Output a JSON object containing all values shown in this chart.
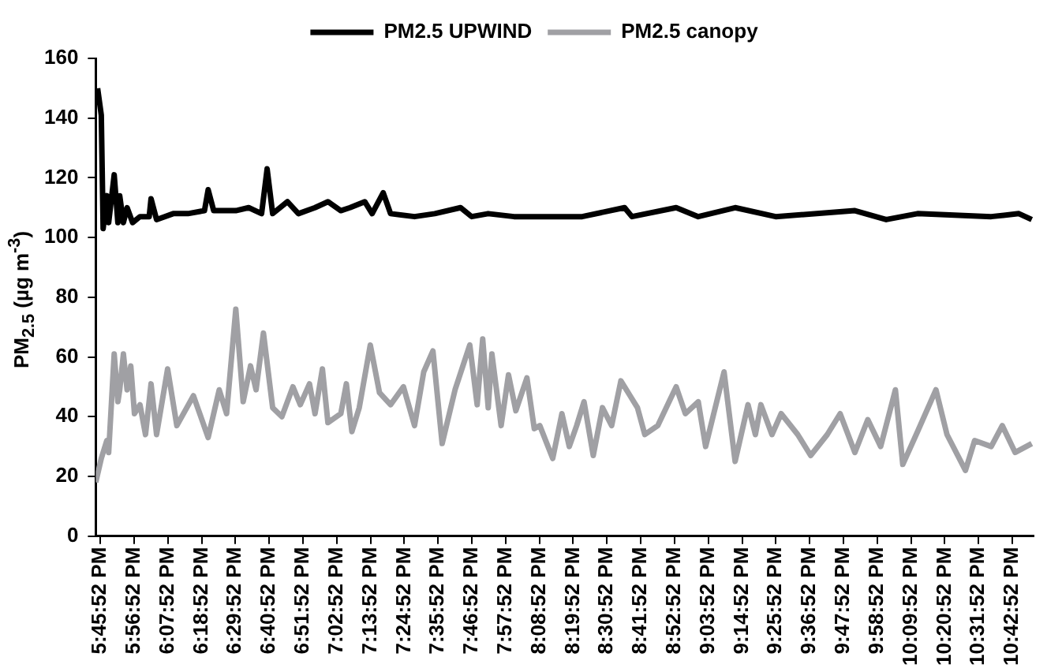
{
  "chart_data": {
    "type": "line",
    "ylabel": "PM$_{2.5}$ (µg m$^{-3}$)",
    "xlim": [
      17.74,
      22.83
    ],
    "ylim": [
      0,
      160
    ],
    "yticks": [
      0,
      20,
      40,
      60,
      80,
      100,
      120,
      140,
      160
    ],
    "xticks": [
      {
        "value": 17.7644,
        "label": "5:45:52 PM"
      },
      {
        "value": 17.9478,
        "label": "5:56:52 PM"
      },
      {
        "value": 18.1311,
        "label": "6:07:52 PM"
      },
      {
        "value": 18.3144,
        "label": "6:18:52 PM"
      },
      {
        "value": 18.4978,
        "label": "6:29:52 PM"
      },
      {
        "value": 18.6811,
        "label": "6:40:52 PM"
      },
      {
        "value": 18.8644,
        "label": "6:51:52 PM"
      },
      {
        "value": 19.0478,
        "label": "7:02:52 PM"
      },
      {
        "value": 19.2311,
        "label": "7:13:52 PM"
      },
      {
        "value": 19.4144,
        "label": "7:24:52 PM"
      },
      {
        "value": 19.5978,
        "label": "7:35:52 PM"
      },
      {
        "value": 19.7811,
        "label": "7:46:52 PM"
      },
      {
        "value": 19.9644,
        "label": "7:57:52 PM"
      },
      {
        "value": 20.1478,
        "label": "8:08:52 PM"
      },
      {
        "value": 20.3311,
        "label": "8:19:52 PM"
      },
      {
        "value": 20.5144,
        "label": "8:30:52 PM"
      },
      {
        "value": 20.6978,
        "label": "8:41:52 PM"
      },
      {
        "value": 20.8811,
        "label": "8:52:52 PM"
      },
      {
        "value": 21.0644,
        "label": "9:03:52 PM"
      },
      {
        "value": 21.2478,
        "label": "9:14:52 PM"
      },
      {
        "value": 21.4311,
        "label": "9:25:52 PM"
      },
      {
        "value": 21.6144,
        "label": "9:36:52 PM"
      },
      {
        "value": 21.7978,
        "label": "9:47:52 PM"
      },
      {
        "value": 21.9811,
        "label": "9:58:52 PM"
      },
      {
        "value": 22.1644,
        "label": "10:09:52 PM"
      },
      {
        "value": 22.3478,
        "label": "10:20:52 PM"
      },
      {
        "value": 22.5311,
        "label": "10:31:52 PM"
      },
      {
        "value": 22.7144,
        "label": "10:42:52 PM"
      }
    ],
    "grid": false,
    "legend": "top",
    "marker": "none",
    "line_style": "solid",
    "series": [
      {
        "name": "PM2.5 UPWIND",
        "color": "#000000",
        "x": [
          17.75,
          17.77,
          17.78,
          17.8,
          17.81,
          17.84,
          17.86,
          17.87,
          17.89,
          17.91,
          17.94,
          17.98,
          18.03,
          18.04,
          18.07,
          18.16,
          18.24,
          18.33,
          18.35,
          18.38,
          18.5,
          18.57,
          18.64,
          18.67,
          18.7,
          18.78,
          18.84,
          18.93,
          19.0,
          19.07,
          19.12,
          19.2,
          19.24,
          19.3,
          19.34,
          19.47,
          19.58,
          19.72,
          19.78,
          19.87,
          20.01,
          20.15,
          20.38,
          20.61,
          20.65,
          20.89,
          21.01,
          21.21,
          21.43,
          21.86,
          22.03,
          22.2,
          22.6,
          22.75,
          22.82
        ],
        "values": [
          150,
          141,
          103,
          114,
          105,
          121,
          105,
          114,
          105,
          110,
          105,
          107,
          107,
          113,
          106,
          108,
          108,
          109,
          116,
          109,
          109,
          110,
          108,
          123,
          108,
          112,
          108,
          110,
          112,
          109,
          110,
          112,
          108,
          115,
          108,
          107,
          108,
          110,
          107,
          108,
          107,
          107,
          107,
          110,
          107,
          110,
          107,
          110,
          107,
          109,
          106,
          108,
          107,
          108,
          106
        ]
      },
      {
        "name": "PM2.5 canopy",
        "color": "#a0a0a4",
        "x": [
          17.74,
          17.77,
          17.8,
          17.81,
          17.84,
          17.86,
          17.87,
          17.89,
          17.91,
          17.93,
          17.95,
          17.98,
          18.01,
          18.04,
          18.07,
          18.13,
          18.18,
          18.27,
          18.35,
          18.41,
          18.45,
          18.5,
          18.54,
          18.58,
          18.61,
          18.65,
          18.7,
          18.75,
          18.81,
          18.85,
          18.9,
          18.93,
          18.97,
          19.0,
          19.07,
          19.1,
          19.13,
          19.17,
          19.23,
          19.28,
          19.34,
          19.41,
          19.47,
          19.52,
          19.57,
          19.62,
          19.69,
          19.77,
          19.81,
          19.84,
          19.87,
          19.89,
          19.94,
          19.98,
          20.02,
          20.08,
          20.12,
          20.15,
          20.22,
          20.27,
          20.31,
          20.35,
          20.39,
          20.44,
          20.49,
          20.54,
          20.59,
          20.64,
          20.68,
          20.72,
          20.79,
          20.89,
          20.94,
          21.01,
          21.05,
          21.15,
          21.21,
          21.28,
          21.32,
          21.35,
          21.41,
          21.46,
          21.55,
          21.62,
          21.71,
          21.78,
          21.86,
          21.93,
          22.0,
          22.08,
          22.12,
          22.2,
          22.3,
          22.36,
          22.46,
          22.51,
          22.6,
          22.66,
          22.73,
          22.82
        ],
        "values": [
          18,
          26,
          32,
          28,
          61,
          45,
          49,
          61,
          49,
          57,
          41,
          44,
          34,
          51,
          34,
          56,
          37,
          47,
          33,
          49,
          41,
          76,
          45,
          57,
          49,
          68,
          43,
          40,
          50,
          44,
          51,
          41,
          56,
          38,
          41,
          51,
          35,
          43,
          64,
          48,
          44,
          50,
          37,
          55,
          62,
          31,
          49,
          64,
          44,
          66,
          43,
          61,
          37,
          54,
          42,
          53,
          36,
          37,
          26,
          41,
          30,
          37,
          45,
          27,
          43,
          37,
          52,
          47,
          43,
          34,
          37,
          50,
          41,
          45,
          30,
          55,
          25,
          44,
          34,
          44,
          34,
          41,
          34,
          27,
          34,
          41,
          28,
          39,
          30,
          49,
          24,
          35,
          49,
          34,
          22,
          32,
          30,
          37,
          28,
          31
        ]
      }
    ]
  }
}
